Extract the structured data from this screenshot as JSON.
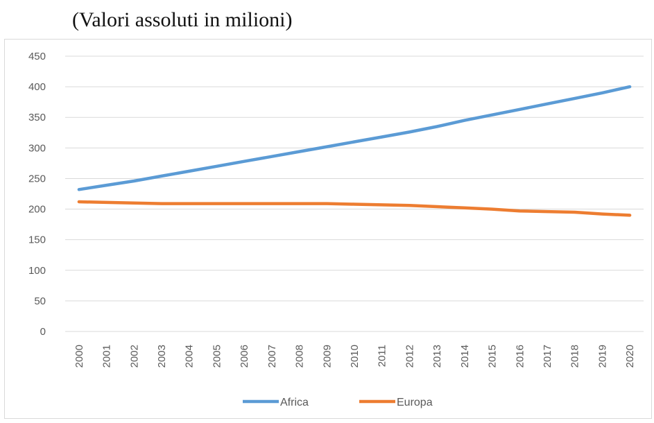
{
  "caption": "(Valori assoluti in milioni)",
  "chart_data": {
    "type": "line",
    "title": "",
    "xlabel": "",
    "ylabel": "",
    "x": [
      "2000",
      "2001",
      "2002",
      "2003",
      "2004",
      "2005",
      "2006",
      "2007",
      "2008",
      "2009",
      "2010",
      "2011",
      "2012",
      "2013",
      "2014",
      "2015",
      "2016",
      "2017",
      "2018",
      "2019",
      "2020"
    ],
    "ylim": [
      0,
      450
    ],
    "yticks": [
      0,
      50,
      100,
      150,
      200,
      250,
      300,
      350,
      400,
      450
    ],
    "grid": true,
    "legend_position": "bottom",
    "series": [
      {
        "name": "Africa",
        "color": "#5b9bd5",
        "values": [
          232,
          239,
          246,
          254,
          262,
          270,
          278,
          286,
          294,
          302,
          310,
          318,
          326,
          335,
          345,
          354,
          363,
          372,
          381,
          390,
          400
        ]
      },
      {
        "name": "Europa",
        "color": "#ed7d31",
        "values": [
          212,
          211,
          210,
          209,
          209,
          209,
          209,
          209,
          209,
          209,
          208,
          207,
          206,
          204,
          202,
          200,
          197,
          196,
          195,
          192,
          190
        ]
      }
    ]
  }
}
